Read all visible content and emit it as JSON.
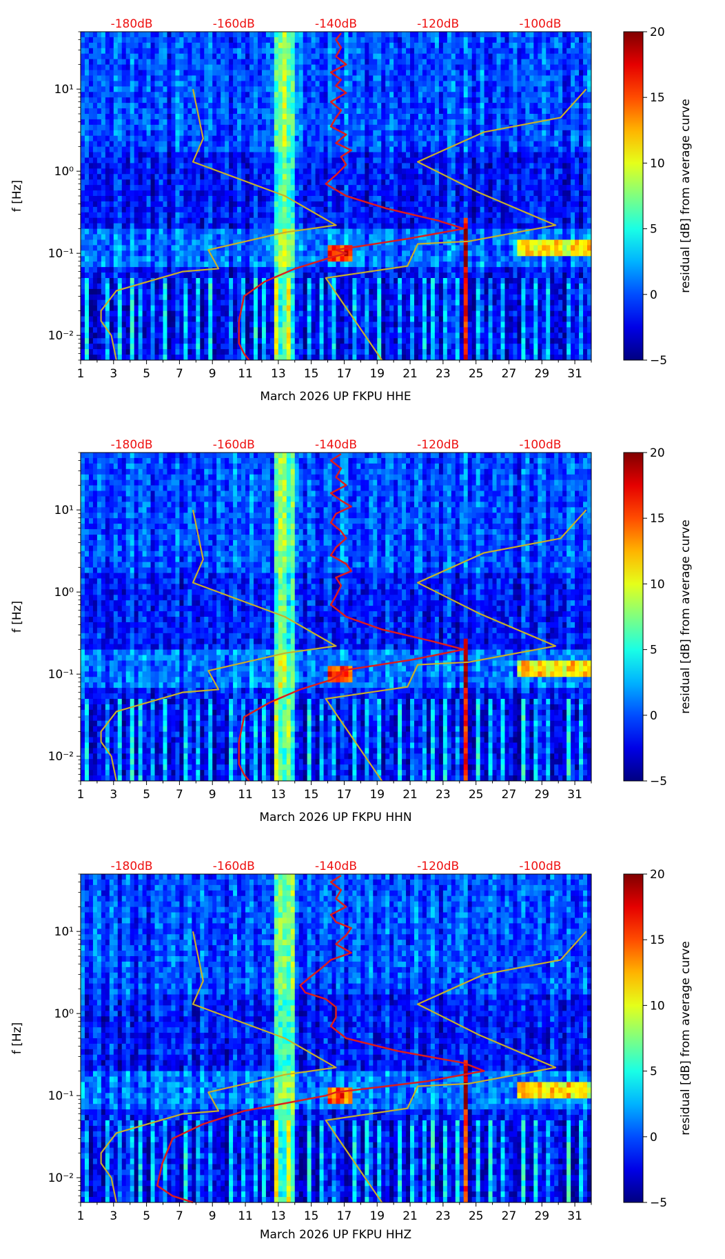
{
  "chart_data": [
    {
      "type": "heatmap",
      "title": "",
      "xlabel": "March 2026 UP FKPU  HHE",
      "ylabel": "f [Hz]",
      "x_ticks": [
        "1",
        "3",
        "5",
        "7",
        "9",
        "11",
        "13",
        "15",
        "17",
        "19",
        "21",
        "23",
        "25",
        "27",
        "29",
        "31"
      ],
      "xlim": [
        1,
        32
      ],
      "ylim": [
        0.005,
        50
      ],
      "y_scale": "log",
      "y_ticks": [
        "10⁻²",
        "10⁻¹",
        "10⁰",
        "10¹"
      ],
      "top_ticks": [
        "-180dB",
        "-160dB",
        "-140dB",
        "-120dB",
        "-100dB"
      ],
      "top_xlim_db": [
        -190,
        -90
      ],
      "colorbar": {
        "label": "residual [dB] from average curve",
        "range": [
          -5,
          20
        ],
        "ticks": [
          "−5",
          "0",
          "5",
          "10",
          "15",
          "20"
        ]
      },
      "series": [
        {
          "name": "station-average-psd",
          "color": "#dd1c1c",
          "x_db": [
            -139,
            -140,
            -139,
            -140,
            -138,
            -141,
            -139,
            -140,
            -138,
            -141,
            -139,
            -140,
            -141,
            -138,
            -140,
            -137,
            -139,
            -138,
            -140,
            -142,
            -138,
            -130,
            -120,
            -115,
            -126,
            -140,
            -138,
            -142,
            -148,
            -154,
            -158,
            -159,
            -159,
            -158,
            -157
          ],
          "freq_hz": [
            48,
            40,
            32,
            25,
            20,
            16,
            13,
            11,
            9,
            7,
            5.5,
            4.5,
            3.5,
            2.8,
            2.2,
            1.8,
            1.5,
            1.2,
            0.9,
            0.7,
            0.5,
            0.35,
            0.25,
            0.2,
            0.15,
            0.11,
            0.1,
            0.085,
            0.065,
            0.045,
            0.03,
            0.015,
            0.008,
            0.006,
            0.005
          ]
        },
        {
          "name": "noise-model-low",
          "color": "#c8b02a",
          "x_db": [
            -168,
            -166,
            -168,
            -150,
            -140,
            -150,
            -165,
            -163,
            -170,
            -183,
            -186,
            -186,
            -184,
            -183
          ],
          "freq_hz": [
            10,
            2.5,
            1.3,
            0.5,
            0.22,
            0.18,
            0.11,
            0.065,
            0.06,
            0.035,
            0.02,
            0.015,
            0.01,
            0.005
          ]
        },
        {
          "name": "noise-model-high",
          "color": "#c8b02a",
          "x_db": [
            -91,
            -96,
            -111,
            -124,
            -112,
            -97,
            -114,
            -124,
            -126,
            -142,
            -131
          ],
          "freq_hz": [
            10,
            4.5,
            3,
            1.3,
            0.55,
            0.22,
            0.14,
            0.13,
            0.07,
            0.05,
            0.005
          ]
        }
      ]
    },
    {
      "type": "heatmap",
      "title": "",
      "xlabel": "March 2026 UP FKPU  HHN",
      "ylabel": "f [Hz]",
      "x_ticks": [
        "1",
        "3",
        "5",
        "7",
        "9",
        "11",
        "13",
        "15",
        "17",
        "19",
        "21",
        "23",
        "25",
        "27",
        "29",
        "31"
      ],
      "xlim": [
        1,
        32
      ],
      "ylim": [
        0.005,
        50
      ],
      "y_scale": "log",
      "y_ticks": [
        "10⁻²",
        "10⁻¹",
        "10⁰",
        "10¹"
      ],
      "top_ticks": [
        "-180dB",
        "-160dB",
        "-140dB",
        "-120dB",
        "-100dB"
      ],
      "top_xlim_db": [
        -190,
        -90
      ],
      "colorbar": {
        "label": "residual [dB] from average curve",
        "range": [
          -5,
          20
        ],
        "ticks": [
          "−5",
          "0",
          "5",
          "10",
          "15",
          "20"
        ]
      },
      "series": [
        {
          "name": "station-average-psd",
          "color": "#dd1c1c",
          "x_db": [
            -139,
            -141,
            -139,
            -140,
            -138,
            -141,
            -139,
            -137,
            -140,
            -141,
            -139,
            -138,
            -140,
            -141,
            -138,
            -137,
            -140,
            -139,
            -140,
            -141,
            -138,
            -131,
            -121,
            -115,
            -125,
            -139,
            -139,
            -141,
            -147,
            -153,
            -158,
            -159,
            -159,
            -158,
            -157
          ],
          "freq_hz": [
            48,
            40,
            32,
            25,
            20,
            16,
            13,
            11,
            9,
            7,
            5.5,
            4.5,
            3.5,
            2.8,
            2.2,
            1.8,
            1.5,
            1.2,
            0.9,
            0.7,
            0.5,
            0.35,
            0.25,
            0.2,
            0.15,
            0.11,
            0.1,
            0.085,
            0.065,
            0.045,
            0.03,
            0.015,
            0.008,
            0.006,
            0.005
          ]
        },
        {
          "name": "noise-model-low",
          "color": "#c8b02a",
          "x_db": [
            -168,
            -166,
            -168,
            -150,
            -140,
            -150,
            -165,
            -163,
            -170,
            -183,
            -186,
            -186,
            -184,
            -183
          ],
          "freq_hz": [
            10,
            2.5,
            1.3,
            0.5,
            0.22,
            0.18,
            0.11,
            0.065,
            0.06,
            0.035,
            0.02,
            0.015,
            0.01,
            0.005
          ]
        },
        {
          "name": "noise-model-high",
          "color": "#c8b02a",
          "x_db": [
            -91,
            -96,
            -111,
            -124,
            -112,
            -97,
            -114,
            -124,
            -126,
            -142,
            -131
          ],
          "freq_hz": [
            10,
            4.5,
            3,
            1.3,
            0.55,
            0.22,
            0.14,
            0.13,
            0.07,
            0.05,
            0.005
          ]
        }
      ]
    },
    {
      "type": "heatmap",
      "title": "",
      "xlabel": "March 2026 UP FKPU  HHZ",
      "ylabel": "f [Hz]",
      "x_ticks": [
        "1",
        "3",
        "5",
        "7",
        "9",
        "11",
        "13",
        "15",
        "17",
        "19",
        "21",
        "23",
        "25",
        "27",
        "29",
        "31"
      ],
      "xlim": [
        1,
        32
      ],
      "ylim": [
        0.005,
        50
      ],
      "y_scale": "log",
      "y_ticks": [
        "10⁻²",
        "10⁻¹",
        "10⁰",
        "10¹"
      ],
      "top_ticks": [
        "-180dB",
        "-160dB",
        "-140dB",
        "-120dB",
        "-100dB"
      ],
      "top_xlim_db": [
        -190,
        -90
      ],
      "colorbar": {
        "label": "residual [dB] from average curve",
        "range": [
          -5,
          20
        ],
        "ticks": [
          "−5",
          "0",
          "5",
          "10",
          "15",
          "20"
        ]
      },
      "series": [
        {
          "name": "station-average-psd",
          "color": "#dd1c1c",
          "x_db": [
            -139,
            -141,
            -139,
            -140,
            -138,
            -141,
            -140,
            -137,
            -138,
            -140,
            -137,
            -141,
            -143,
            -145,
            -147,
            -146,
            -142,
            -140,
            -140,
            -141,
            -138,
            -128,
            -115,
            -111,
            -122,
            -140,
            -142,
            -148,
            -158,
            -166,
            -172,
            -174,
            -175,
            -172,
            -168
          ],
          "freq_hz": [
            48,
            40,
            32,
            25,
            20,
            16,
            13,
            11,
            9,
            7,
            5.5,
            4.5,
            3.5,
            2.8,
            2.2,
            1.8,
            1.5,
            1.2,
            0.9,
            0.7,
            0.5,
            0.35,
            0.25,
            0.2,
            0.15,
            0.11,
            0.1,
            0.085,
            0.065,
            0.045,
            0.03,
            0.015,
            0.008,
            0.006,
            0.005
          ]
        },
        {
          "name": "noise-model-low",
          "color": "#c8b02a",
          "x_db": [
            -168,
            -166,
            -168,
            -150,
            -140,
            -150,
            -165,
            -163,
            -170,
            -183,
            -186,
            -186,
            -184,
            -183
          ],
          "freq_hz": [
            10,
            2.5,
            1.3,
            0.5,
            0.22,
            0.18,
            0.11,
            0.065,
            0.06,
            0.035,
            0.02,
            0.015,
            0.01,
            0.005
          ]
        },
        {
          "name": "noise-model-high",
          "color": "#c8b02a",
          "x_db": [
            -91,
            -96,
            -111,
            -124,
            -112,
            -97,
            -114,
            -124,
            -126,
            -142,
            -131
          ],
          "freq_hz": [
            10,
            4.5,
            3,
            1.3,
            0.55,
            0.22,
            0.14,
            0.13,
            0.07,
            0.05,
            0.005
          ]
        }
      ]
    }
  ]
}
